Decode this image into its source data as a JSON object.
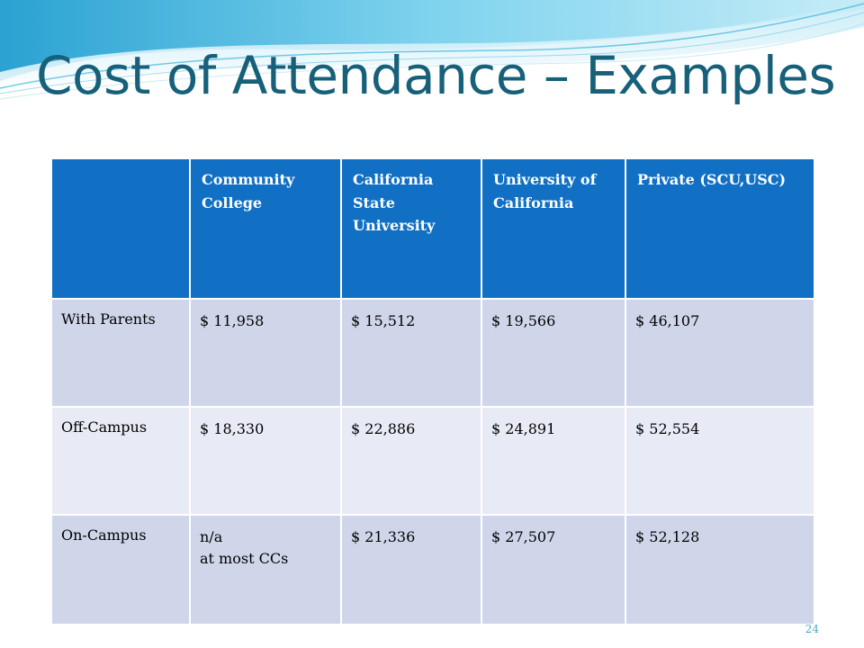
{
  "slide": {
    "title": "Cost of Attendance – Examples",
    "page_number": "24",
    "colors": {
      "title": "#17607a",
      "header_bg": "#1170c4",
      "row_dark": "#cfd6ea",
      "row_light": "#e8ebf5",
      "wave": "#5bc0e0"
    }
  },
  "table": {
    "headers": [
      "",
      "Community College",
      "California State University",
      "University of California",
      "Private (SCU,USC)"
    ],
    "rows": [
      {
        "label": "With Parents",
        "values": [
          "$ 11,958",
          "$ 15,512",
          "$ 19,566",
          "$ 46,107"
        ]
      },
      {
        "label": "Off-Campus",
        "values": [
          "$ 18,330",
          "$ 22,886",
          "$ 24,891",
          "$ 52,554"
        ]
      },
      {
        "label": "On-Campus",
        "values": [
          "n/a",
          "$ 21,336",
          "$ 27,507",
          "$ 52,128"
        ],
        "note": "at most CCs"
      }
    ]
  }
}
